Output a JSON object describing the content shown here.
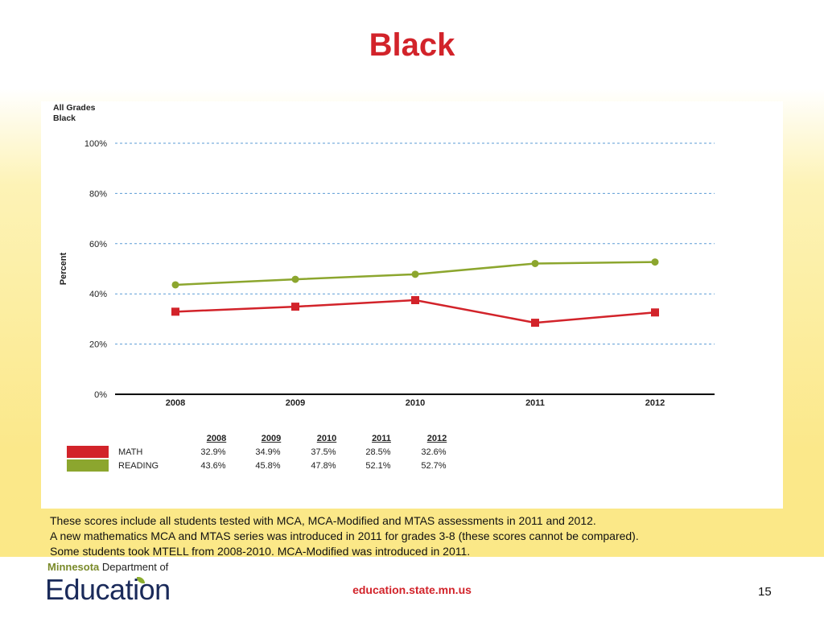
{
  "slide": {
    "title": "Black",
    "notes": [
      "These scores include all students tested with MCA, MCA-Modified and MTAS assessments in 2011 and 2012.",
      "A new mathematics MCA and MTAS series was introduced in 2011 for grades 3-8 (these scores cannot be compared).",
      "Some students took MTELL from 2008-2010.  MCA-Modified was introduced in 2011."
    ],
    "footer": {
      "logo_state": "Minnesota",
      "logo_dept": "Department of",
      "logo_word": "Education",
      "url": "education.state.mn.us",
      "page_number": "15"
    }
  },
  "chart_data": {
    "type": "line",
    "title": "All Grades",
    "subtitle": "Black",
    "ylabel": "Percent",
    "xlabel": "",
    "ylim": [
      0,
      100
    ],
    "yticks": [
      0,
      20,
      40,
      60,
      80,
      100
    ],
    "ytick_labels": [
      "0%",
      "20%",
      "40%",
      "60%",
      "80%",
      "100%"
    ],
    "grid": true,
    "categories": [
      "2008",
      "2009",
      "2010",
      "2011",
      "2012"
    ],
    "series": [
      {
        "name": "MATH",
        "color": "#d2232a",
        "marker": "square",
        "values": [
          32.9,
          34.9,
          37.5,
          28.5,
          32.6
        ],
        "labels": [
          "32.9%",
          "34.9%",
          "37.5%",
          "28.5%",
          "32.6%"
        ]
      },
      {
        "name": "READING",
        "color": "#8ca62e",
        "marker": "circle",
        "values": [
          43.6,
          45.8,
          47.8,
          52.1,
          52.7
        ],
        "labels": [
          "43.6%",
          "45.8%",
          "47.8%",
          "52.1%",
          "52.7%"
        ]
      }
    ]
  }
}
